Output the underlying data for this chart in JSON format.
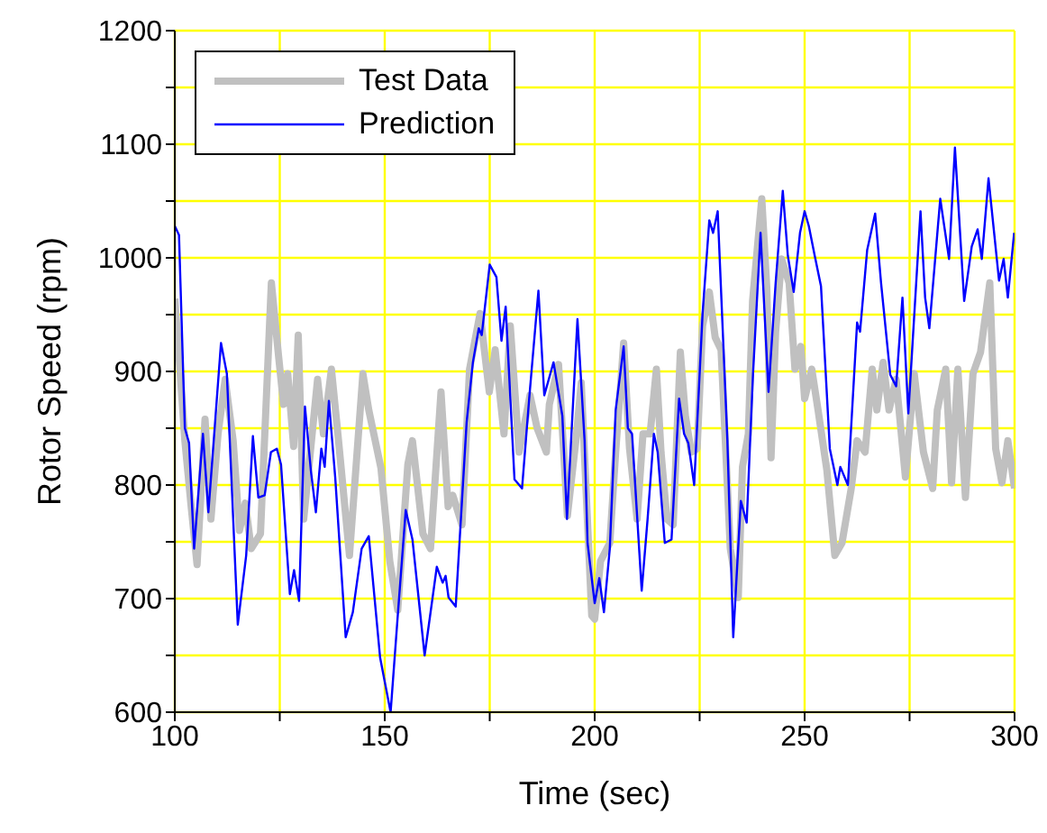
{
  "chart_data": {
    "type": "line",
    "xlabel": "Time (sec)",
    "ylabel": "Rotor Speed (rpm)",
    "xlim": [
      100,
      300
    ],
    "ylim": [
      600,
      1200
    ],
    "xticks": [
      100,
      {
        "value": 125,
        "label": null
      },
      150,
      {
        "value": 175,
        "label": null
      },
      200,
      {
        "value": 225,
        "label": null
      },
      250,
      {
        "value": 275,
        "label": null
      },
      300
    ],
    "yticks": [
      600,
      {
        "value": 650,
        "label": null
      },
      700,
      {
        "value": 750,
        "label": null
      },
      800,
      {
        "value": 850,
        "label": null
      },
      900,
      {
        "value": 950,
        "label": null
      },
      1000,
      {
        "value": 1050,
        "label": null
      },
      1100,
      {
        "value": 1150,
        "label": null
      },
      1200
    ],
    "grid": true,
    "legend": "top left",
    "marker": "none",
    "line_style": "solid",
    "series": [
      {
        "name": "Test Data",
        "color": "#c0c0c0",
        "x": [
          100,
          101,
          102.4,
          103.9,
          105.3,
          107.2,
          108.6,
          110.3,
          112,
          113.9,
          115.4,
          116.8,
          118.2,
          120.4,
          123,
          124.7,
          125.9,
          126.9,
          128.3,
          129.4,
          130.7,
          134,
          135.4,
          137.3,
          139,
          141.6,
          144.8,
          146.2,
          149.1,
          151.2,
          153.1,
          155.5,
          156.6,
          159.1,
          160.9,
          163.4,
          165.1,
          166.2,
          168.4,
          170.2,
          172.7,
          174.9,
          176.3,
          178.4,
          179.9,
          182,
          184.6,
          186.3,
          188.5,
          189.2,
          191.4,
          193.5,
          195.7,
          196.8,
          199.3,
          200,
          201.4,
          203.6,
          205,
          206.9,
          208.3,
          210.1,
          211.5,
          213.2,
          214.7,
          215.8,
          217.2,
          218.7,
          220.4,
          221.6,
          223,
          224.4,
          225.7,
          227.3,
          228.7,
          230.1,
          232.3,
          234.2,
          235.2,
          236.6,
          237.6,
          239.8,
          241,
          242,
          243.1,
          244.5,
          246.3,
          247.7,
          249.1,
          250,
          251.7,
          253.2,
          255.3,
          257.2,
          258.9,
          261.1,
          262.5,
          264.4,
          266.1,
          267.2,
          268.7,
          270.1,
          271.8,
          274,
          276.1,
          278.3,
          280.5,
          281.6,
          283.6,
          285,
          286.5,
          288.3,
          290.1,
          291.9,
          294.1,
          295.5,
          297,
          298.4,
          300
        ],
        "values": [
          964,
          914,
          839,
          781,
          730,
          858,
          770,
          845,
          893,
          839,
          760,
          784,
          744,
          757,
          978,
          914,
          871,
          898,
          834,
          932,
          770,
          893,
          845,
          902,
          839,
          738,
          898,
          866,
          815,
          733,
          690,
          818,
          839,
          757,
          744,
          882,
          781,
          791,
          765,
          902,
          951,
          882,
          919,
          845,
          940,
          829,
          879,
          850,
          829,
          871,
          906,
          773,
          845,
          890,
          685,
          682,
          733,
          749,
          829,
          925,
          832,
          770,
          845,
          845,
          902,
          829,
          770,
          765,
          917,
          861,
          829,
          832,
          940,
          970,
          930,
          919,
          744,
          701,
          816,
          845,
          962,
          1052,
          973,
          824,
          935,
          999,
          978,
          902,
          922,
          876,
          902,
          866,
          813,
          738,
          749,
          797,
          839,
          829,
          902,
          866,
          908,
          866,
          893,
          807,
          898,
          829,
          797,
          866,
          902,
          802,
          902,
          789,
          898,
          917,
          978,
          832,
          802,
          839,
          797
        ]
      },
      {
        "name": "Prediction",
        "color": "#0000ff",
        "x": [
          100,
          101,
          102.4,
          103.4,
          104.6,
          106.7,
          108,
          111,
          112.4,
          115,
          117,
          118.6,
          119.9,
          121.4,
          122.9,
          124.3,
          125.3,
          127.4,
          128.4,
          129.6,
          131,
          132.4,
          133.6,
          134.9,
          135.7,
          136.7,
          138.2,
          140.7,
          142.4,
          144.5,
          146.2,
          148.9,
          151.4,
          153,
          155,
          156.6,
          159.5,
          162.4,
          163.8,
          164.5,
          165.2,
          166.9,
          169.5,
          171,
          172.4,
          173.1,
          175,
          176.6,
          177.8,
          178.8,
          180.9,
          182.7,
          184.4,
          186.6,
          188,
          190.2,
          192.3,
          193.4,
          195.9,
          197.6,
          198.3,
          200,
          201.1,
          202.2,
          203.6,
          205,
          206.9,
          207.9,
          208.9,
          211.2,
          212.6,
          214.1,
          215,
          216.7,
          218.3,
          220.1,
          221.3,
          222.3,
          223.7,
          225.7,
          227.3,
          228.2,
          229.3,
          231.6,
          233,
          234.8,
          236.2,
          237.7,
          239.5,
          241.4,
          243.1,
          244.8,
          246,
          247.4,
          248.9,
          250,
          251,
          252.4,
          253.9,
          256,
          257.8,
          258.5,
          260.3,
          262.5,
          263.2,
          264.9,
          266.8,
          268.2,
          270.4,
          271.8,
          273.3,
          274.7,
          277.6,
          278.7,
          279.7,
          282.3,
          284.4,
          285.8,
          288,
          289.8,
          291.2,
          292.2,
          293.8,
          296.3,
          297.4,
          298.4,
          299.9
        ],
        "values": [
          1028,
          1020,
          850,
          837,
          744,
          845,
          776,
          925,
          898,
          677,
          738,
          843,
          789,
          791,
          829,
          832,
          818,
          704,
          725,
          698,
          869,
          813,
          776,
          832,
          816,
          874,
          807,
          666,
          688,
          744,
          755,
          648,
          600,
          680,
          778,
          752,
          650,
          728,
          714,
          720,
          701,
          693,
          855,
          908,
          938,
          932,
          994,
          983,
          927,
          957,
          805,
          797,
          876,
          971,
          879,
          908,
          861,
          770,
          946,
          839,
          749,
          696,
          718,
          688,
          744,
          866,
          922,
          850,
          845,
          707,
          770,
          845,
          829,
          749,
          752,
          876,
          845,
          837,
          800,
          951,
          1033,
          1022,
          1041,
          840,
          666,
          786,
          767,
          897,
          1022,
          882,
          978,
          1059,
          1002,
          970,
          1022,
          1041,
          1028,
          1002,
          975,
          832,
          800,
          816,
          800,
          943,
          935,
          1007,
          1039,
          978,
          897,
          887,
          965,
          863,
          1041,
          965,
          938,
          1052,
          999,
          1097,
          962,
          1010,
          1025,
          999,
          1070,
          980,
          999,
          965,
          1022
        ]
      }
    ]
  }
}
